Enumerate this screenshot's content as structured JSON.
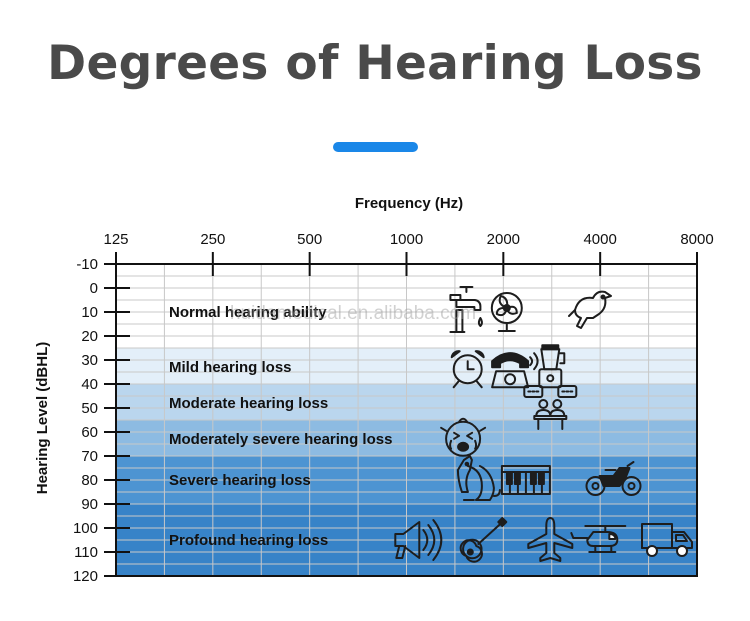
{
  "title": "Degrees of Hearing Loss",
  "colors": {
    "title": "#4a4a4a",
    "accent": "#1a87e8",
    "band_normal": "#ffffff",
    "band_mild": "#e3eff9",
    "band_moderate": "#bad6ee",
    "band_mod_severe": "#8dbbe2",
    "band_severe": "#4d94d2",
    "band_profound": "#3783c8",
    "grid": "#c8c8c8"
  },
  "watermark": "huidamedical.en.alibaba.com",
  "chart_data": {
    "type": "area",
    "xlabel": "Frequency (Hz)",
    "ylabel": "Hearing Level (dBHL)",
    "x_ticks": [
      "125",
      "250",
      "500",
      "1000",
      "2000",
      "4000",
      "8000"
    ],
    "y_ticks": [
      "-10",
      "0",
      "10",
      "20",
      "30",
      "40",
      "50",
      "60",
      "70",
      "80",
      "90",
      "100",
      "110",
      "120"
    ],
    "y_range": [
      -10,
      120
    ],
    "y_inverted": true,
    "grid": true,
    "bands": [
      {
        "label": "Normal hearing ability",
        "from": -10,
        "to": 25,
        "color_key": "band_normal"
      },
      {
        "label": "Mild hearing loss",
        "from": 25,
        "to": 40,
        "color_key": "band_mild"
      },
      {
        "label": "Moderate hearing loss",
        "from": 40,
        "to": 55,
        "color_key": "band_moderate"
      },
      {
        "label": "Moderately severe hearing loss",
        "from": 55,
        "to": 70,
        "color_key": "band_mod_severe"
      },
      {
        "label": "Severe hearing loss",
        "from": 70,
        "to": 90,
        "color_key": "band_severe"
      },
      {
        "label": "Profound hearing loss",
        "from": 90,
        "to": 120,
        "color_key": "band_profound"
      }
    ],
    "band_label_levels": [
      10,
      33,
      48,
      63,
      80,
      105
    ],
    "example_sounds": [
      {
        "icon": "faucet-icon",
        "freq": 1580,
        "level": 10
      },
      {
        "icon": "fan-icon",
        "freq": 2050,
        "level": 10
      },
      {
        "icon": "bird-icon",
        "freq": 3800,
        "level": 10
      },
      {
        "icon": "alarm-clock-icon",
        "freq": 1550,
        "level": 33
      },
      {
        "icon": "telephone-icon",
        "freq": 2100,
        "level": 33
      },
      {
        "icon": "blender-icon",
        "freq": 2800,
        "level": 33
      },
      {
        "icon": "conversation-icon",
        "freq": 2800,
        "level": 50
      },
      {
        "icon": "crying-baby-icon",
        "freq": 1500,
        "level": 62
      },
      {
        "icon": "dog-icon",
        "freq": 1620,
        "level": 80
      },
      {
        "icon": "piano-icon",
        "freq": 2350,
        "level": 80
      },
      {
        "icon": "motorcycle-icon",
        "freq": 4400,
        "level": 80
      },
      {
        "icon": "megaphone-icon",
        "freq": 1050,
        "level": 105
      },
      {
        "icon": "guitar-icon",
        "freq": 1720,
        "level": 105
      },
      {
        "icon": "airplane-icon",
        "freq": 2800,
        "level": 105
      },
      {
        "icon": "helicopter-icon",
        "freq": 4150,
        "level": 105
      },
      {
        "icon": "truck-icon",
        "freq": 6500,
        "level": 105
      }
    ]
  }
}
